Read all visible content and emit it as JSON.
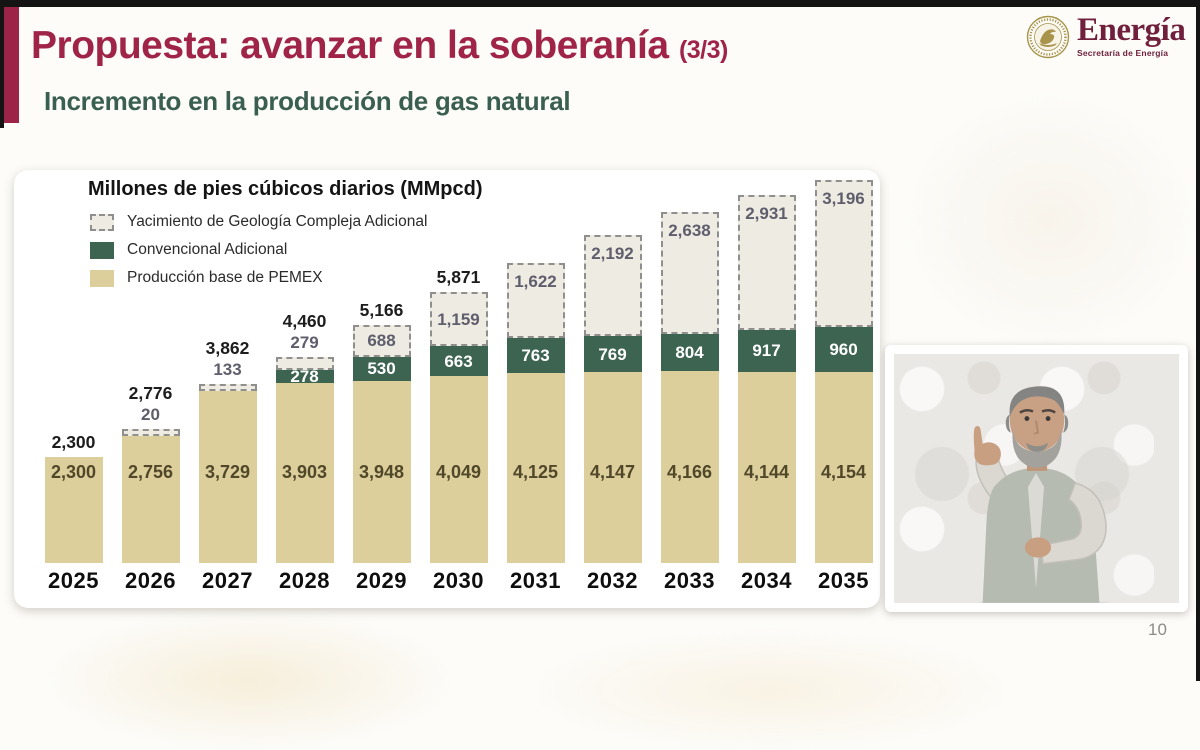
{
  "page": {
    "title": "Propuesta: avanzar en la soberanía",
    "title_suffix": "(3/3)",
    "subtitle": "Incremento en la producción de gas natural",
    "page_number": "10"
  },
  "logo": {
    "name": "Energía",
    "subtitle": "Secretaría de Energía",
    "emblem": "mexico-eagle-seal"
  },
  "colors": {
    "maroon": "#a02448",
    "logo_maroon": "#70203c",
    "subtitle_green": "#3a5f51",
    "bar_base": "#dccf9c",
    "bar_conv": "#3d6451",
    "bar_complex_fill": "#eeebe3",
    "bar_complex_border": "#8f8f8e",
    "label_total": "#1d1d1d",
    "label_complex": "#5e5e6c",
    "label_base": "#51482a"
  },
  "chart_data": {
    "type": "bar",
    "stacked": true,
    "title": "Millones de pies cúbicos diarios (MMpcd)",
    "xlabel": "",
    "ylabel": "MMpcd",
    "grid": false,
    "legend_position": "top-left",
    "legend": [
      {
        "label": "Yacimiento de Geología Compleja Adicional",
        "swatch": "dashed"
      },
      {
        "label": "Convencional Adicional",
        "swatch": "green"
      },
      {
        "label": "Producción base de PEMEX",
        "swatch": "tan"
      }
    ],
    "categories": [
      "2025",
      "2026",
      "2027",
      "2028",
      "2029",
      "2030",
      "2031",
      "2032",
      "2033",
      "2034",
      "2035"
    ],
    "series": [
      {
        "name": "Producción base de PEMEX",
        "values": [
          2300,
          2756,
          3729,
          3903,
          3948,
          4049,
          4125,
          4147,
          4166,
          4144,
          4154
        ]
      },
      {
        "name": "Convencional Adicional",
        "values": [
          0,
          0,
          0,
          278,
          530,
          663,
          763,
          769,
          804,
          917,
          960
        ]
      },
      {
        "name": "Yacimiento de Geología Compleja Adicional",
        "values": [
          0,
          20,
          133,
          279,
          688,
          1159,
          1622,
          2192,
          2638,
          2931,
          3196
        ]
      }
    ],
    "totals": [
      2300,
      2776,
      3862,
      4460,
      5166,
      5871,
      null,
      null,
      null,
      null,
      null
    ],
    "bars": [
      {
        "year": "2025",
        "base": 2300,
        "base_label": "2,300",
        "conv": 0,
        "conv_label": null,
        "complex": 0,
        "complex_label": null,
        "complex_above": false,
        "total_label": "2,300"
      },
      {
        "year": "2026",
        "base": 2756,
        "base_label": "2,756",
        "conv": 0,
        "conv_label": null,
        "complex": 20,
        "complex_label": "20",
        "complex_above": true,
        "total_label": "2,776"
      },
      {
        "year": "2027",
        "base": 3729,
        "base_label": "3,729",
        "conv": 0,
        "conv_label": null,
        "complex": 133,
        "complex_label": "133",
        "complex_above": true,
        "total_label": "3,862"
      },
      {
        "year": "2028",
        "base": 3903,
        "base_label": "3,903",
        "conv": 278,
        "conv_label": "278",
        "complex": 279,
        "complex_label": "279",
        "complex_above": true,
        "total_label": "4,460"
      },
      {
        "year": "2029",
        "base": 3948,
        "base_label": "3,948",
        "conv": 530,
        "conv_label": "530",
        "complex": 688,
        "complex_label": "688",
        "complex_above": false,
        "total_label": "5,166"
      },
      {
        "year": "2030",
        "base": 4049,
        "base_label": "4,049",
        "conv": 663,
        "conv_label": "663",
        "complex": 1159,
        "complex_label": "1,159",
        "complex_above": false,
        "total_label": "5,871"
      },
      {
        "year": "2031",
        "base": 4125,
        "base_label": "4,125",
        "conv": 763,
        "conv_label": "763",
        "complex": 1622,
        "complex_label": "1,622",
        "complex_above": false,
        "total_label": null
      },
      {
        "year": "2032",
        "base": 4147,
        "base_label": "4,147",
        "conv": 769,
        "conv_label": "769",
        "complex": 2192,
        "complex_label": "2,192",
        "complex_above": false,
        "total_label": null
      },
      {
        "year": "2033",
        "base": 4166,
        "base_label": "4,166",
        "conv": 804,
        "conv_label": "804",
        "complex": 2638,
        "complex_label": "2,638",
        "complex_above": false,
        "total_label": null
      },
      {
        "year": "2034",
        "base": 4144,
        "base_label": "4,144",
        "conv": 917,
        "conv_label": "917",
        "complex": 2931,
        "complex_label": "2,931",
        "complex_above": false,
        "total_label": null
      },
      {
        "year": "2035",
        "base": 4154,
        "base_label": "4,154",
        "conv": 960,
        "conv_label": "960",
        "complex": 3196,
        "complex_label": "3,196",
        "complex_above": false,
        "total_label": null
      }
    ]
  },
  "interpreter": {
    "description": "sign-language-interpreter-video"
  }
}
